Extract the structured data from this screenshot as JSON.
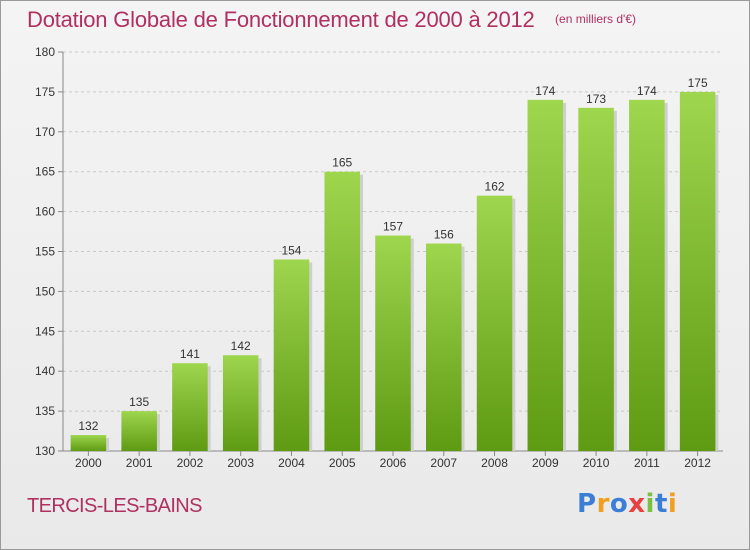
{
  "title": "Dotation Globale de Fonctionnement de 2000 à 2012",
  "subtitle": "(en milliers d'€)",
  "commune": "TERCIS-LES-BAINS",
  "brand": {
    "letters": [
      "P",
      "r",
      "o",
      "x",
      "i",
      "t",
      "i"
    ],
    "colors": [
      "#3a7fd5",
      "#f0a020",
      "#3a7fd5",
      "#e84040",
      "#7ac043",
      "#3a7fd5",
      "#f0a020"
    ]
  },
  "colors": {
    "title": "#b03060",
    "bar_top": "#9ed64e",
    "bar_bottom": "#5e9a12",
    "grid": "#c8c8c8"
  },
  "chart_data": {
    "type": "bar",
    "categories": [
      "2000",
      "2001",
      "2002",
      "2003",
      "2004",
      "2005",
      "2006",
      "2007",
      "2008",
      "2009",
      "2010",
      "2011",
      "2012"
    ],
    "values": [
      132,
      135,
      141,
      142,
      154,
      165,
      157,
      156,
      162,
      174,
      173,
      174,
      175
    ],
    "ylim": [
      130,
      180
    ],
    "yticks": [
      130,
      135,
      140,
      145,
      150,
      155,
      160,
      165,
      170,
      175,
      180
    ],
    "grid": true,
    "data_labels": true
  }
}
